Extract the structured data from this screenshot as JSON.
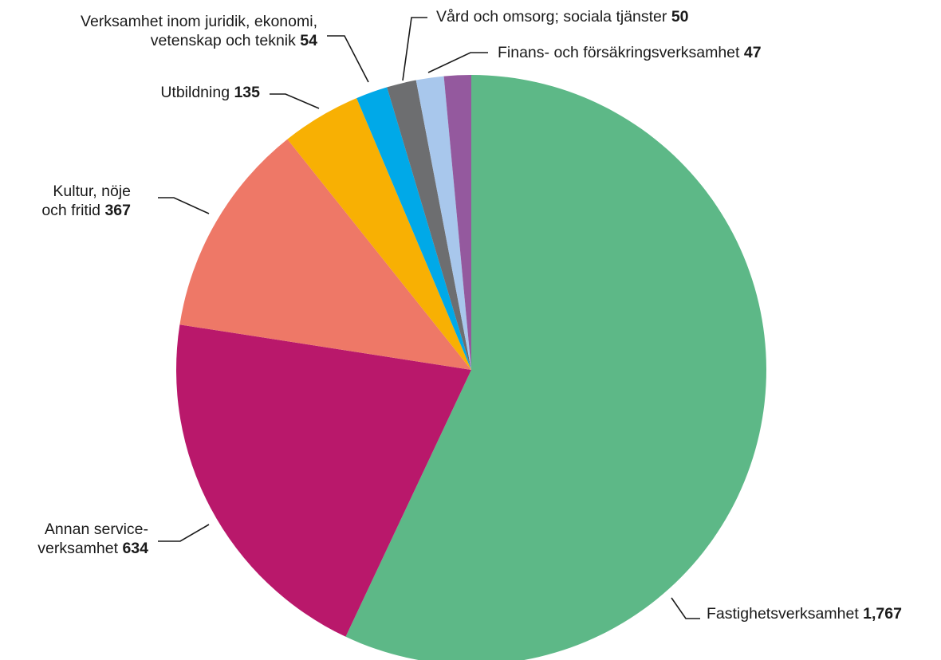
{
  "chart_data": {
    "type": "pie",
    "title": "",
    "colors": [
      "#5db887",
      "#b9186b",
      "#ee7867",
      "#f8b003",
      "#00a9e8",
      "#6d6e70",
      "#a8c7ec",
      "#94599e"
    ],
    "slices": [
      {
        "label_lines": [
          "Fastighetsverksamhet"
        ],
        "value": 1767,
        "display_value": "1,767"
      },
      {
        "label_lines": [
          "Annan service-",
          "verksamhet"
        ],
        "value": 634,
        "display_value": "634"
      },
      {
        "label_lines": [
          "Kultur, nöje",
          "och fritid"
        ],
        "value": 367,
        "display_value": "367"
      },
      {
        "label_lines": [
          "Utbildning"
        ],
        "value": 135,
        "display_value": "135"
      },
      {
        "label_lines": [
          "Verksamhet inom juridik, ekonomi,",
          "vetenskap och teknik"
        ],
        "value": 54,
        "display_value": "54"
      },
      {
        "label_lines": [
          "Vård och omsorg; sociala tjänster"
        ],
        "value": 50,
        "display_value": "50"
      },
      {
        "label_lines": [
          "Finans- och försäkringsverksamhet"
        ],
        "value": 47,
        "display_value": "47"
      },
      {
        "label_lines": [
          ""
        ],
        "value": 46,
        "display_value": ""
      }
    ]
  }
}
